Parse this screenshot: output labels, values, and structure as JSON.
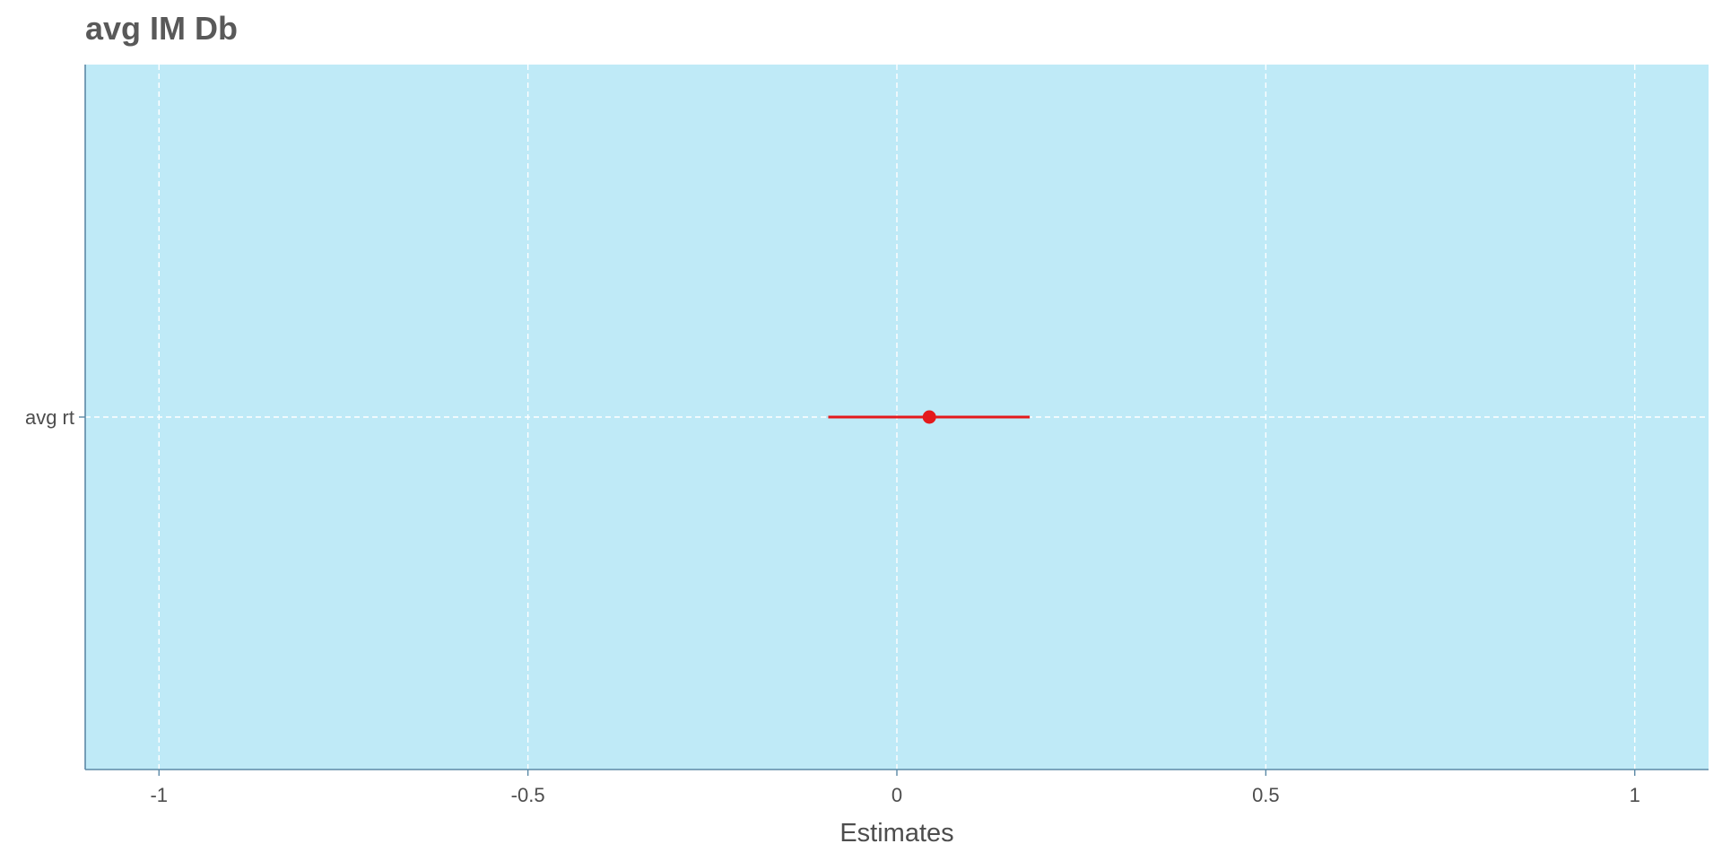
{
  "chart_data": {
    "type": "forest",
    "title": "avg IM Db",
    "xlabel": "Estimates",
    "ylabel": "",
    "xlim": [
      -1.1,
      1.1
    ],
    "x_ticks": [
      -1,
      -0.5,
      0,
      0.5,
      1
    ],
    "x_tick_labels": [
      "-1",
      "-0.5",
      "0",
      "0.5",
      "1"
    ],
    "grid": true,
    "legend": "none",
    "terms": [
      {
        "label": "avg rt",
        "estimate": 0.044,
        "conf_low": -0.093,
        "conf_high": 0.18,
        "color": "#e41a1c"
      }
    ],
    "colors": {
      "panel_background": "#bfeaf7",
      "grid": "#ffffff",
      "axis_line": "#5b89a6",
      "point": "#e41a1c"
    }
  }
}
